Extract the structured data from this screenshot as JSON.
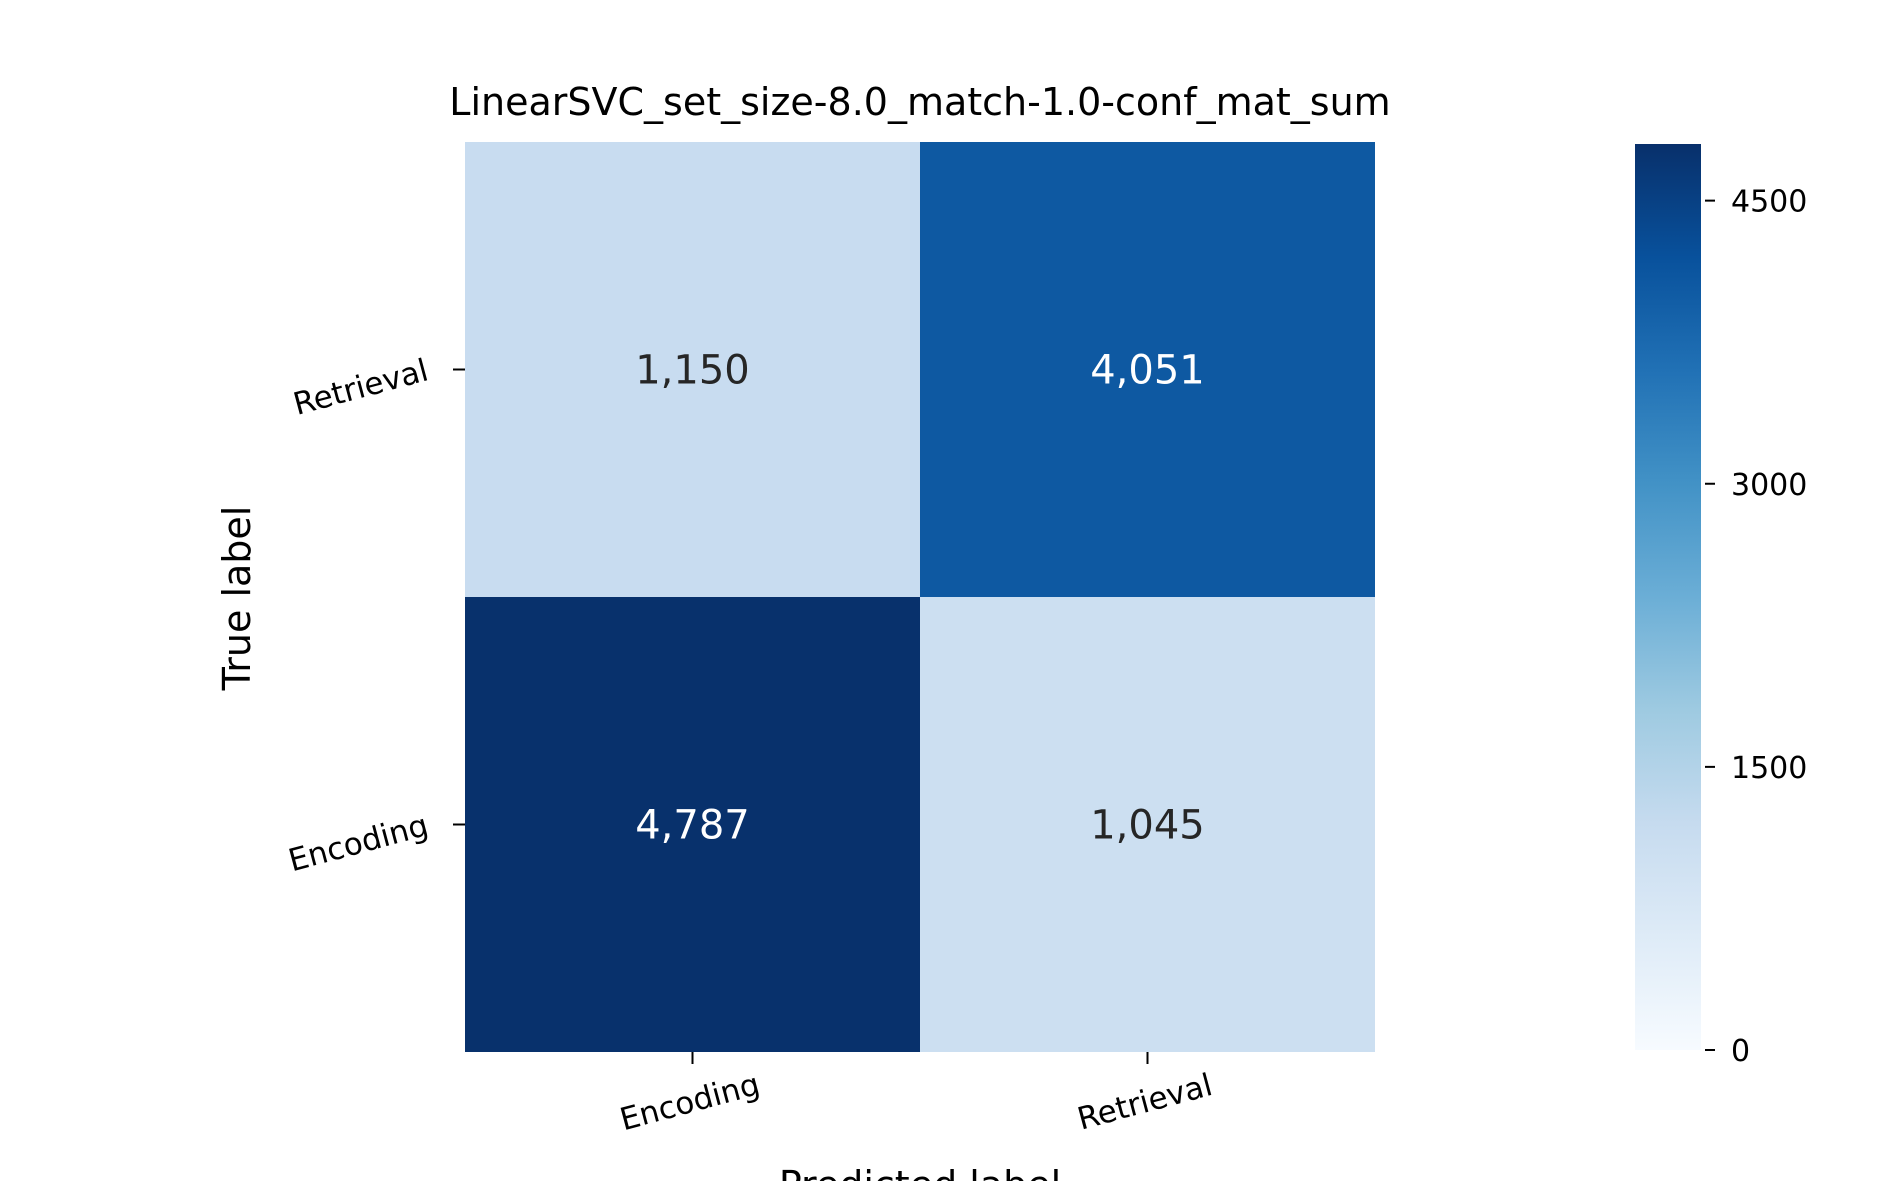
{
  "chart_data": {
    "type": "heatmap",
    "title": "LinearSVC_set_size-8.0_match-1.0-conf_mat_sum",
    "xlabel": "Predicted label",
    "ylabel": "True label",
    "x_categories": [
      "Encoding",
      "Retrieval"
    ],
    "y_categories": [
      "Retrieval",
      "Encoding"
    ],
    "matrix": [
      [
        1150,
        4051
      ],
      [
        4787,
        1045
      ]
    ],
    "cell_labels": [
      [
        "1,150",
        "4,051"
      ],
      [
        "4,787",
        "1,045"
      ]
    ],
    "colormap": "Blues",
    "colorbar": {
      "range": [
        0,
        4800
      ],
      "ticks": [
        0,
        1500,
        3000,
        4500
      ],
      "tick_labels": [
        "0",
        "1500",
        "3000",
        "4500"
      ]
    },
    "grid": false
  }
}
